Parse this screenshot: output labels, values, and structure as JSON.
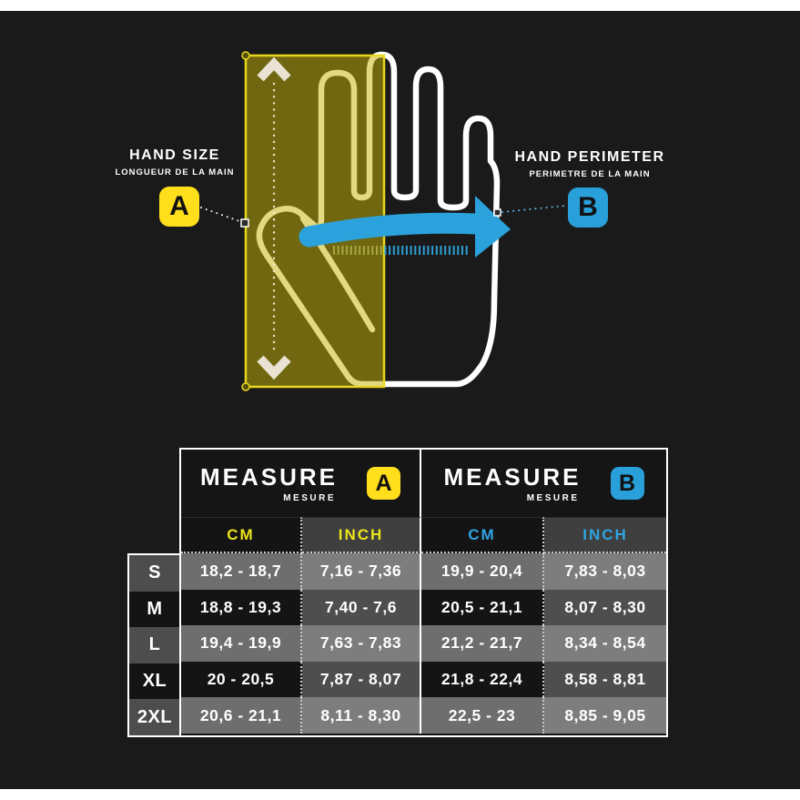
{
  "illustration": {
    "hand_size": {
      "title": "HAND SIZE",
      "subtitle": "LONGUEUR DE LA MAIN",
      "badge": "A"
    },
    "hand_perimeter": {
      "title": "HAND PERIMETER",
      "subtitle": "PERIMETRE DE LA MAIN",
      "badge": "B"
    },
    "icons": [
      "hand-outline-icon",
      "measure-area-overlay",
      "vertical-measure-arrow-icon",
      "perimeter-arrow-icon",
      "ruler-ticks-icon"
    ]
  },
  "colors": {
    "accent_yellow": "#ffdf1c",
    "accent_blue": "#29a0da",
    "canvas_black": "#1a1a1a",
    "row_light_cm": "#6e6e6e",
    "row_light_inch": "#7d7d7d",
    "row_dark_cm": "#141414",
    "row_dark_inch": "#4e4e4e"
  },
  "table": {
    "sections": [
      {
        "title": "MEASURE",
        "subtitle": "MESURE",
        "badge": "A",
        "columns": [
          "CM",
          "INCH"
        ]
      },
      {
        "title": "MEASURE",
        "subtitle": "MESURE",
        "badge": "B",
        "columns": [
          "CM",
          "INCH"
        ]
      }
    ],
    "rows": [
      {
        "size": "S",
        "a_cm": "18,2 - 18,7",
        "a_inch": "7,16 - 7,36",
        "b_cm": "19,9 - 20,4",
        "b_inch": "7,83 - 8,03"
      },
      {
        "size": "M",
        "a_cm": "18,8 - 19,3",
        "a_inch": "7,40 - 7,6",
        "b_cm": "20,5 - 21,1",
        "b_inch": "8,07 - 8,30"
      },
      {
        "size": "L",
        "a_cm": "19,4 - 19,9",
        "a_inch": "7,63 - 7,83",
        "b_cm": "21,2 - 21,7",
        "b_inch": "8,34 - 8,54"
      },
      {
        "size": "XL",
        "a_cm": "20 - 20,5",
        "a_inch": "7,87 - 8,07",
        "b_cm": "21,8 - 22,4",
        "b_inch": "8,58 - 8,81"
      },
      {
        "size": "2XL",
        "a_cm": "20,6 - 21,1",
        "a_inch": "8,11 - 8,30",
        "b_cm": "22,5 - 23",
        "b_inch": "8,85 - 9,05"
      }
    ]
  }
}
